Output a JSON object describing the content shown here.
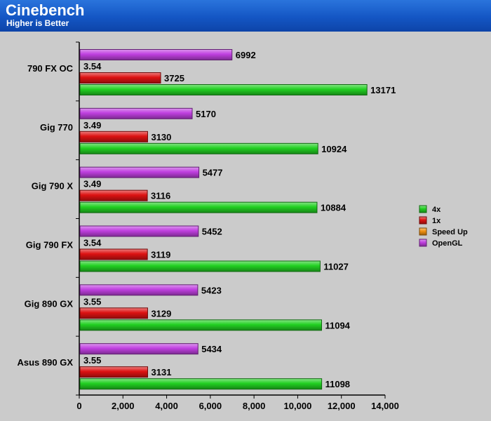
{
  "header": {
    "title": "Cinebench",
    "subtitle": "Higher is Better"
  },
  "colors": {
    "background": "#cbcbcb",
    "header": "#1456c4",
    "4x": "#22d022",
    "1x": "#dd1212",
    "Speed Up": "#f09010",
    "OpenGL": "#c040e0"
  },
  "chart_data": {
    "type": "bar",
    "orientation": "horizontal",
    "title": "Cinebench",
    "subtitle": "Higher is Better",
    "categories": [
      "790 FX OC",
      "Gig 770",
      "Gig 790 X",
      "Gig 790 FX",
      "Gig 890 GX",
      "Asus 890 GX"
    ],
    "series": [
      {
        "name": "4x",
        "values": [
          13171,
          10924,
          10884,
          11027,
          11094,
          11098
        ]
      },
      {
        "name": "1x",
        "values": [
          3725,
          3130,
          3116,
          3119,
          3129,
          3131
        ]
      },
      {
        "name": "Speed Up",
        "values": [
          3.54,
          3.49,
          3.49,
          3.54,
          3.55,
          3.55
        ]
      },
      {
        "name": "OpenGL",
        "values": [
          6992,
          5170,
          5477,
          5452,
          5423,
          5434
        ]
      }
    ],
    "xlim": [
      0,
      14000
    ],
    "xticks": [
      "0",
      "2,000",
      "4,000",
      "6,000",
      "8,000",
      "10,000",
      "12,000",
      "14,000"
    ],
    "grid": false,
    "legend": {
      "position": "right",
      "entries": [
        "4x",
        "1x",
        "Speed Up",
        "OpenGL"
      ]
    }
  }
}
